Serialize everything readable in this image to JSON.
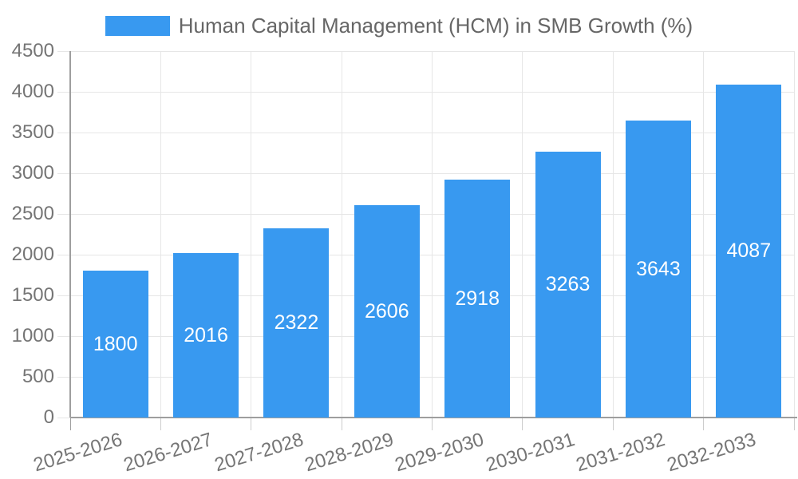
{
  "chart_data": {
    "type": "bar",
    "title": "Human Capital Management (HCM) in SMB Growth (%)",
    "legend_position": "top",
    "categories": [
      "2025-2026",
      "2026-2027",
      "2027-2028",
      "2028-2029",
      "2029-2030",
      "2030-2031",
      "2031-2032",
      "2032-2033"
    ],
    "series": [
      {
        "name": "Human Capital Management (HCM) in SMB Growth (%)",
        "values": [
          1800,
          2016,
          2322,
          2606,
          2918,
          3263,
          3643,
          4087
        ]
      }
    ],
    "value_labels_shown_inside_bars": true,
    "xlabel": "",
    "ylabel": "",
    "ylim": [
      0,
      4500
    ],
    "ytick_step": 500,
    "yticks": [
      0,
      500,
      1000,
      1500,
      2000,
      2500,
      3000,
      3500,
      4000,
      4500
    ],
    "grid": true,
    "x_label_rotation_deg": -17,
    "colors": {
      "bar": "#3899F0",
      "value_label": "#ffffff",
      "axis": "#9e9e9e",
      "gridline": "#e6e6e6",
      "tick_mark": "#cccccc",
      "tick_label": "#757575",
      "legend_label": "#666666",
      "background": "#ffffff"
    }
  }
}
